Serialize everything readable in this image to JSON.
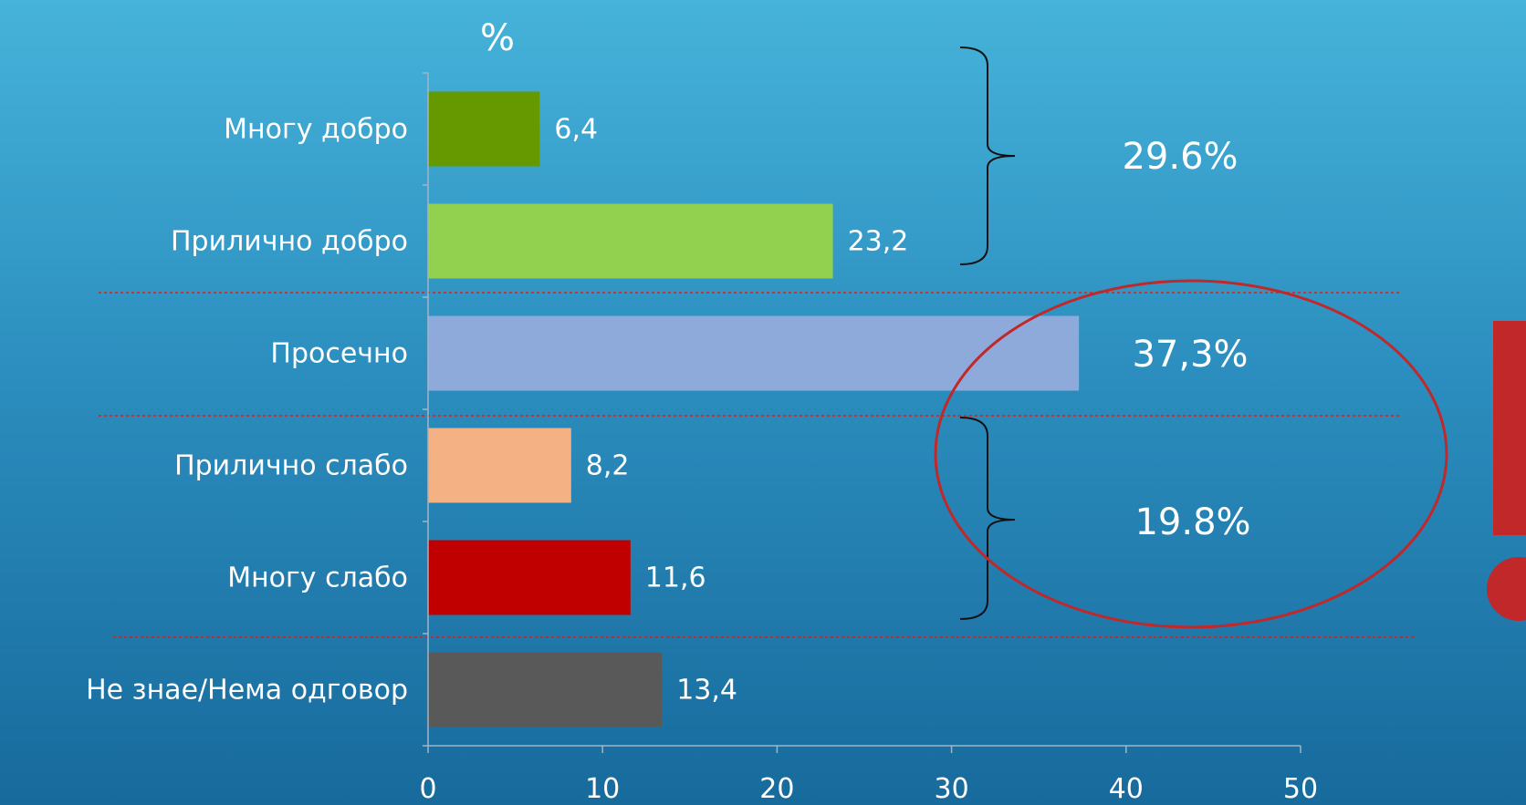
{
  "chart_data": {
    "type": "bar",
    "orientation": "horizontal",
    "unit_label": "%",
    "categories": [
      "Многу добро",
      "Прилично добро",
      "Просечно",
      "Прилично слабо",
      "Многу слабо",
      "Не знае/Нема одговор"
    ],
    "values": [
      6.4,
      23.2,
      37.3,
      8.2,
      11.6,
      13.4
    ],
    "value_labels": [
      "6,4",
      "23,2",
      "",
      "8,2",
      "11,6",
      "13,4"
    ],
    "colors": [
      "#669900",
      "#92d050",
      "#8eaadb",
      "#f4b183",
      "#c00000",
      "#595959"
    ],
    "xlim": [
      0,
      50
    ],
    "xticks": [
      "0",
      "10",
      "20",
      "30",
      "40",
      "50"
    ],
    "grid": false,
    "annotations": {
      "positive_total": "29.6%",
      "average_total": "37,3%",
      "negative_total": "19.8%",
      "exclamation_color": "#c0282a",
      "ellipse_color": "#c0282a",
      "separator_color": "#c0282a"
    }
  }
}
